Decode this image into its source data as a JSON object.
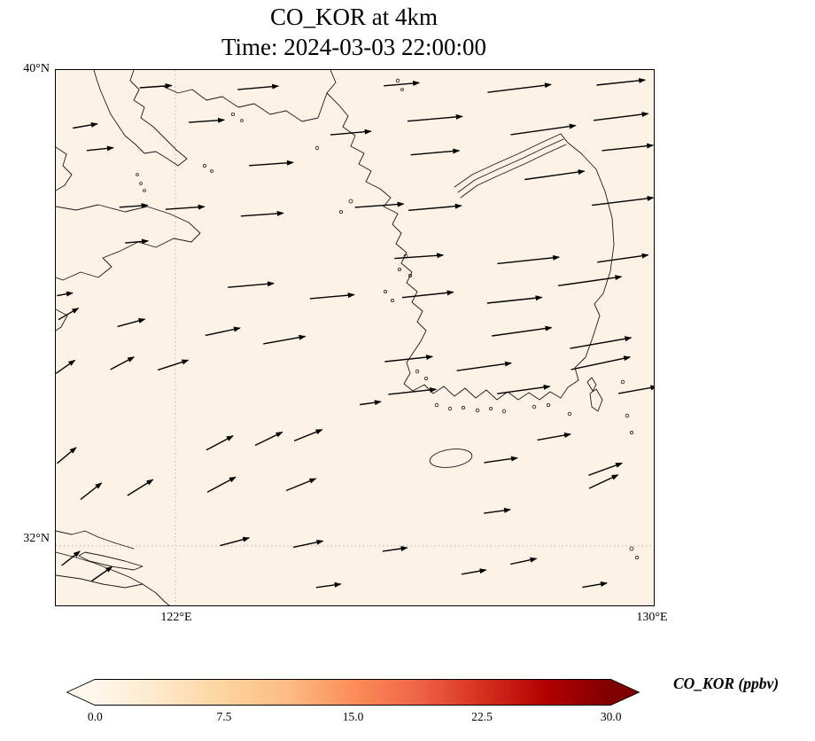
{
  "chart_data": {
    "type": "quiver_map",
    "title": "CO_KOR at 4km",
    "subtitle": "Time: 2024-03-03 22:00:00",
    "variable": "CO_KOR",
    "level": "4km",
    "time": "2024-03-03 22:00:00",
    "xlim": [
      120,
      130
    ],
    "ylim": [
      31,
      40
    ],
    "xticks": [
      {
        "value": 122,
        "label": "122°E"
      },
      {
        "value": 130,
        "label": "130°E"
      }
    ],
    "yticks": [
      {
        "value": 40,
        "label": "40°N"
      },
      {
        "value": 32,
        "label": "32°N"
      }
    ],
    "grid": {
      "style": "dotted",
      "color": "#c4b29c",
      "lon_lines": [
        122
      ],
      "lat_lines": [
        32
      ]
    },
    "map_fill_color": "#fdf2e6",
    "coast_color": "#1a1a1a",
    "arrow_color": "#000000",
    "colorbar": {
      "label": "CO_KOR (ppbv)",
      "unit": "ppbv",
      "min": 0,
      "max": 30,
      "ticks": [
        0,
        7.5,
        15,
        22.5,
        30
      ],
      "tick_labels": [
        "0.0",
        "7.5",
        "15.0",
        "22.5",
        "30.0"
      ],
      "cmap": "OrRd",
      "extend": "both",
      "colors": [
        "#fff7ec",
        "#fee8c8",
        "#fdd49e",
        "#fdbb84",
        "#fc8d59",
        "#ef6548",
        "#d7301f",
        "#b30000",
        "#7f0000"
      ]
    },
    "arrows_format": [
      "lon",
      "lat",
      "direction_deg_ccw_from_east",
      "length_px"
    ],
    "arrows": [
      [
        121.67,
        39.72,
        4,
        36
      ],
      [
        123.38,
        39.7,
        5,
        46
      ],
      [
        125.78,
        39.76,
        5,
        40
      ],
      [
        127.75,
        39.69,
        7,
        72
      ],
      [
        129.45,
        39.79,
        6,
        55
      ],
      [
        120.49,
        39.06,
        10,
        28
      ],
      [
        122.52,
        39.14,
        4,
        40
      ],
      [
        124.93,
        38.94,
        5,
        46
      ],
      [
        126.34,
        39.18,
        5,
        62
      ],
      [
        128.15,
        38.99,
        8,
        74
      ],
      [
        129.45,
        39.21,
        7,
        62
      ],
      [
        120.74,
        38.67,
        6,
        30
      ],
      [
        123.6,
        38.42,
        4,
        50
      ],
      [
        126.34,
        38.61,
        5,
        55
      ],
      [
        128.34,
        38.23,
        8,
        68
      ],
      [
        129.56,
        38.69,
        6,
        58
      ],
      [
        121.3,
        37.71,
        4,
        32
      ],
      [
        122.16,
        37.68,
        4,
        44
      ],
      [
        123.45,
        37.57,
        4,
        48
      ],
      [
        125.41,
        37.72,
        4,
        55
      ],
      [
        126.34,
        37.68,
        5,
        60
      ],
      [
        129.48,
        37.79,
        7,
        70
      ],
      [
        121.35,
        37.11,
        5,
        26
      ],
      [
        126.07,
        36.86,
        4,
        55
      ],
      [
        127.9,
        36.8,
        6,
        70
      ],
      [
        129.48,
        36.83,
        8,
        58
      ],
      [
        120.15,
        36.23,
        10,
        18
      ],
      [
        123.26,
        36.38,
        5,
        52
      ],
      [
        124.62,
        36.19,
        5,
        50
      ],
      [
        126.22,
        36.22,
        6,
        58
      ],
      [
        127.67,
        36.13,
        6,
        62
      ],
      [
        128.93,
        36.45,
        8,
        72
      ],
      [
        120.21,
        35.9,
        30,
        26
      ],
      [
        121.26,
        35.75,
        15,
        32
      ],
      [
        122.79,
        35.6,
        12,
        40
      ],
      [
        123.82,
        35.46,
        10,
        48
      ],
      [
        127.79,
        35.6,
        8,
        68
      ],
      [
        129.11,
        35.41,
        10,
        70
      ],
      [
        120.16,
        35.01,
        35,
        26
      ],
      [
        121.11,
        35.07,
        28,
        30
      ],
      [
        121.96,
        35.04,
        18,
        36
      ],
      [
        125.9,
        35.14,
        6,
        54
      ],
      [
        125.96,
        34.59,
        6,
        54
      ],
      [
        127.16,
        35.01,
        8,
        62
      ],
      [
        127.82,
        34.62,
        8,
        60
      ],
      [
        129.11,
        35.07,
        12,
        68
      ],
      [
        129.73,
        34.62,
        10,
        44
      ],
      [
        120.18,
        33.52,
        40,
        28
      ],
      [
        122.74,
        33.73,
        28,
        34
      ],
      [
        123.56,
        33.8,
        26,
        34
      ],
      [
        124.22,
        33.86,
        22,
        34
      ],
      [
        125.26,
        34.4,
        8,
        24
      ],
      [
        127.44,
        33.44,
        8,
        38
      ],
      [
        128.33,
        33.83,
        10,
        38
      ],
      [
        129.19,
        33.29,
        20,
        40
      ],
      [
        120.59,
        32.92,
        38,
        30
      ],
      [
        121.41,
        32.98,
        32,
        34
      ],
      [
        122.77,
        33.03,
        28,
        36
      ],
      [
        124.1,
        33.03,
        22,
        36
      ],
      [
        127.38,
        32.58,
        8,
        30
      ],
      [
        129.16,
        33.08,
        25,
        36
      ],
      [
        120.25,
        31.79,
        38,
        26
      ],
      [
        120.77,
        31.53,
        35,
        28
      ],
      [
        122.99,
        32.07,
        15,
        34
      ],
      [
        124.22,
        32.03,
        12,
        34
      ],
      [
        125.67,
        31.94,
        8,
        28
      ],
      [
        127.82,
        31.74,
        12,
        30
      ],
      [
        124.56,
        31.33,
        8,
        28
      ],
      [
        126.99,
        31.56,
        10,
        28
      ],
      [
        129.01,
        31.34,
        10,
        28
      ]
    ]
  }
}
